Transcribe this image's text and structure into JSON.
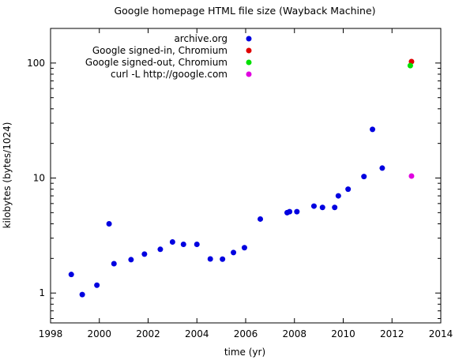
{
  "chart_data": {
    "type": "scatter",
    "title": "Google homepage HTML file size (Wayback Machine)",
    "xlabel": "time (yr)",
    "ylabel": "kilobytes (bytes/1024)",
    "xlim": [
      1998,
      2014
    ],
    "ylim": [
      0.55,
      200
    ],
    "y_scale": "log",
    "x_ticks": [
      1998,
      2000,
      2002,
      2004,
      2006,
      2008,
      2010,
      2012,
      2014
    ],
    "y_ticks": [
      1,
      10,
      100
    ],
    "grid": false,
    "legend_position": "top-left",
    "series": [
      {
        "name": "archive.org",
        "color": "#0000e0",
        "points": [
          {
            "x": 1998.85,
            "y": 1.45
          },
          {
            "x": 1999.3,
            "y": 0.97
          },
          {
            "x": 1999.9,
            "y": 1.17
          },
          {
            "x": 2000.4,
            "y": 4.0
          },
          {
            "x": 2000.6,
            "y": 1.8
          },
          {
            "x": 2001.3,
            "y": 1.95
          },
          {
            "x": 2001.85,
            "y": 2.18
          },
          {
            "x": 2002.5,
            "y": 2.4
          },
          {
            "x": 2003.0,
            "y": 2.78
          },
          {
            "x": 2003.45,
            "y": 2.65
          },
          {
            "x": 2004.0,
            "y": 2.65
          },
          {
            "x": 2004.55,
            "y": 1.98
          },
          {
            "x": 2005.05,
            "y": 1.97
          },
          {
            "x": 2005.5,
            "y": 2.25
          },
          {
            "x": 2005.95,
            "y": 2.48
          },
          {
            "x": 2006.6,
            "y": 4.4
          },
          {
            "x": 2007.7,
            "y": 5.0
          },
          {
            "x": 2007.8,
            "y": 5.1
          },
          {
            "x": 2008.1,
            "y": 5.1
          },
          {
            "x": 2008.8,
            "y": 5.7
          },
          {
            "x": 2009.15,
            "y": 5.55
          },
          {
            "x": 2009.65,
            "y": 5.55
          },
          {
            "x": 2009.8,
            "y": 7.0
          },
          {
            "x": 2010.2,
            "y": 8.0
          },
          {
            "x": 2010.85,
            "y": 10.3
          },
          {
            "x": 2011.2,
            "y": 26.5
          },
          {
            "x": 2011.6,
            "y": 12.2
          }
        ]
      },
      {
        "name": "Google signed-in, Chromium",
        "color": "#e00000",
        "points": [
          {
            "x": 2012.8,
            "y": 103
          }
        ]
      },
      {
        "name": "Google signed-out, Chromium",
        "color": "#00e000",
        "points": [
          {
            "x": 2012.75,
            "y": 95
          }
        ]
      },
      {
        "name": "curl -L http://google.com",
        "color": "#e000e0",
        "points": [
          {
            "x": 2012.8,
            "y": 10.4
          }
        ]
      }
    ]
  }
}
